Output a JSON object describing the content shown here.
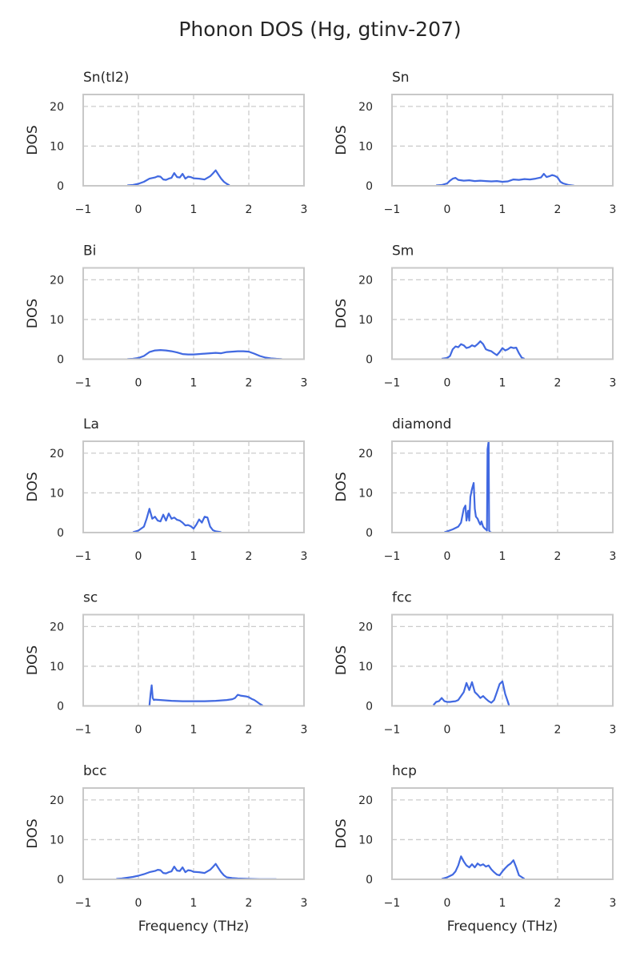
{
  "figure": {
    "title": "Phonon DOS (Hg, gtinv-207)"
  },
  "chart_data": [
    {
      "type": "line",
      "title": "Sn(tI2)",
      "xlabel": "",
      "ylabel": "DOS",
      "xlim": [
        -1,
        3
      ],
      "ylim": [
        0,
        23
      ],
      "x_ticks": [
        "−1",
        "0",
        "1",
        "2",
        "3"
      ],
      "y_ticks": [
        "0",
        "10",
        "20"
      ],
      "grid": true,
      "series": [
        {
          "x": [
            -0.2,
            -0.1,
            0,
            0.1,
            0.2,
            0.3,
            0.35,
            0.4,
            0.45,
            0.5,
            0.55,
            0.6,
            0.65,
            0.7,
            0.75,
            0.8,
            0.85,
            0.9,
            0.95,
            1.0,
            1.1,
            1.2,
            1.3,
            1.35,
            1.4,
            1.45,
            1.5,
            1.55,
            1.6,
            1.65
          ],
          "y": [
            0.1,
            0.2,
            0.5,
            1.0,
            1.8,
            2.1,
            2.4,
            2.3,
            1.6,
            1.5,
            1.8,
            2.0,
            3.2,
            2.2,
            2.1,
            3.0,
            1.8,
            2.3,
            2.2,
            1.9,
            1.8,
            1.6,
            2.4,
            3.1,
            3.9,
            2.8,
            1.8,
            1.0,
            0.5,
            0.1
          ]
        }
      ]
    },
    {
      "type": "line",
      "title": "Sn",
      "xlabel": "",
      "ylabel": "DOS",
      "xlim": [
        -1,
        3
      ],
      "ylim": [
        0,
        23
      ],
      "x_ticks": [
        "−1",
        "0",
        "1",
        "2",
        "3"
      ],
      "y_ticks": [
        "0",
        "10",
        "20"
      ],
      "grid": true,
      "series": [
        {
          "x": [
            -0.2,
            -0.1,
            0,
            0.05,
            0.1,
            0.15,
            0.2,
            0.3,
            0.4,
            0.5,
            0.6,
            0.7,
            0.8,
            0.9,
            1.0,
            1.1,
            1.2,
            1.3,
            1.4,
            1.5,
            1.6,
            1.7,
            1.75,
            1.8,
            1.85,
            1.9,
            1.95,
            2.0,
            2.05,
            2.1,
            2.2,
            2.3
          ],
          "y": [
            0.1,
            0.2,
            0.6,
            1.3,
            1.8,
            2.0,
            1.5,
            1.3,
            1.4,
            1.2,
            1.3,
            1.2,
            1.1,
            1.2,
            1.0,
            1.1,
            1.6,
            1.5,
            1.7,
            1.6,
            1.8,
            2.1,
            3.0,
            2.2,
            2.4,
            2.7,
            2.5,
            2.1,
            1.0,
            0.6,
            0.2,
            0.05
          ]
        }
      ]
    },
    {
      "type": "line",
      "title": "Bi",
      "xlabel": "",
      "ylabel": "DOS",
      "xlim": [
        -1,
        3
      ],
      "ylim": [
        0,
        23
      ],
      "x_ticks": [
        "−1",
        "0",
        "1",
        "2",
        "3"
      ],
      "y_ticks": [
        "0",
        "10",
        "20"
      ],
      "grid": true,
      "series": [
        {
          "x": [
            -0.2,
            -0.1,
            0,
            0.1,
            0.2,
            0.3,
            0.4,
            0.5,
            0.6,
            0.7,
            0.8,
            0.9,
            1.0,
            1.1,
            1.2,
            1.3,
            1.4,
            1.5,
            1.6,
            1.7,
            1.8,
            1.9,
            2.0,
            2.1,
            2.2,
            2.3,
            2.4,
            2.5,
            2.6
          ],
          "y": [
            0.05,
            0.1,
            0.3,
            0.8,
            1.8,
            2.2,
            2.3,
            2.2,
            2.0,
            1.7,
            1.3,
            1.2,
            1.2,
            1.3,
            1.4,
            1.5,
            1.6,
            1.5,
            1.8,
            1.9,
            2.0,
            2.0,
            1.9,
            1.4,
            0.8,
            0.4,
            0.2,
            0.1,
            0.05
          ]
        }
      ]
    },
    {
      "type": "line",
      "title": "Sm",
      "xlabel": "",
      "ylabel": "DOS",
      "xlim": [
        -1,
        3
      ],
      "ylim": [
        0,
        23
      ],
      "x_ticks": [
        "−1",
        "0",
        "1",
        "2",
        "3"
      ],
      "y_ticks": [
        "0",
        "10",
        "20"
      ],
      "grid": true,
      "series": [
        {
          "x": [
            -0.1,
            0,
            0.05,
            0.1,
            0.15,
            0.2,
            0.25,
            0.3,
            0.35,
            0.4,
            0.45,
            0.5,
            0.55,
            0.6,
            0.65,
            0.7,
            0.75,
            0.8,
            0.85,
            0.9,
            0.95,
            1.0,
            1.05,
            1.1,
            1.15,
            1.2,
            1.25,
            1.3,
            1.35,
            1.4
          ],
          "y": [
            0.1,
            0.3,
            0.8,
            2.5,
            3.2,
            3.0,
            3.8,
            3.5,
            2.8,
            3.0,
            3.5,
            3.2,
            3.8,
            4.5,
            3.8,
            2.5,
            2.2,
            2.0,
            1.5,
            1.0,
            1.8,
            2.8,
            2.2,
            2.5,
            3.0,
            2.8,
            2.9,
            1.5,
            0.4,
            0.1
          ]
        }
      ]
    },
    {
      "type": "line",
      "title": "La",
      "xlabel": "",
      "ylabel": "DOS",
      "xlim": [
        -1,
        3
      ],
      "ylim": [
        0,
        23
      ],
      "x_ticks": [
        "−1",
        "0",
        "1",
        "2",
        "3"
      ],
      "y_ticks": [
        "0",
        "10",
        "20"
      ],
      "grid": true,
      "series": [
        {
          "x": [
            -0.1,
            0,
            0.1,
            0.15,
            0.2,
            0.25,
            0.3,
            0.35,
            0.4,
            0.45,
            0.5,
            0.55,
            0.6,
            0.65,
            0.7,
            0.75,
            0.8,
            0.85,
            0.9,
            0.95,
            1.0,
            1.05,
            1.1,
            1.15,
            1.2,
            1.25,
            1.3,
            1.35,
            1.4,
            1.5
          ],
          "y": [
            0.1,
            0.5,
            1.5,
            3.5,
            6.0,
            3.5,
            4.0,
            3.0,
            2.8,
            4.5,
            3.0,
            4.8,
            3.5,
            3.8,
            3.2,
            3.0,
            2.5,
            1.8,
            1.9,
            1.6,
            1.0,
            2.0,
            3.3,
            2.5,
            4.0,
            3.8,
            1.5,
            0.6,
            0.3,
            0.1
          ]
        }
      ]
    },
    {
      "type": "line",
      "title": "diamond",
      "xlabel": "",
      "ylabel": "DOS",
      "xlim": [
        -1,
        3
      ],
      "ylim": [
        0,
        23
      ],
      "x_ticks": [
        "−1",
        "0",
        "1",
        "2",
        "3"
      ],
      "y_ticks": [
        "0",
        "10",
        "20"
      ],
      "grid": true,
      "series": [
        {
          "x": [
            -0.05,
            0,
            0.1,
            0.2,
            0.25,
            0.3,
            0.33,
            0.35,
            0.38,
            0.4,
            0.42,
            0.45,
            0.48,
            0.5,
            0.52,
            0.55,
            0.58,
            0.6,
            0.62,
            0.65,
            0.68,
            0.7,
            0.72,
            0.73,
            0.75,
            0.76,
            0.78,
            0.8
          ],
          "y": [
            0.1,
            0.3,
            0.8,
            1.5,
            2.5,
            6.0,
            6.8,
            3.0,
            5.5,
            3.0,
            9.0,
            11.0,
            12.5,
            6.0,
            4.0,
            3.5,
            2.5,
            2.0,
            2.8,
            1.5,
            1.0,
            0.8,
            0.5,
            21.0,
            23.0,
            0.5,
            0.1,
            0.05
          ]
        }
      ]
    },
    {
      "type": "line",
      "title": "sc",
      "xlabel": "",
      "ylabel": "DOS",
      "xlim": [
        -1,
        3
      ],
      "ylim": [
        0,
        23
      ],
      "x_ticks": [
        "−1",
        "0",
        "1",
        "2",
        "3"
      ],
      "y_ticks": [
        "0",
        "10",
        "20"
      ],
      "grid": true,
      "series": [
        {
          "x": [
            0.2,
            0.22,
            0.24,
            0.26,
            0.28,
            0.3,
            0.4,
            0.5,
            0.6,
            0.8,
            1.0,
            1.2,
            1.4,
            1.5,
            1.6,
            1.7,
            1.75,
            1.8,
            1.85,
            1.9,
            1.95,
            2.0,
            2.05,
            2.1,
            2.15,
            2.2,
            2.25
          ],
          "y": [
            0.1,
            3.0,
            5.2,
            2.0,
            1.5,
            1.6,
            1.5,
            1.4,
            1.3,
            1.2,
            1.2,
            1.2,
            1.3,
            1.4,
            1.5,
            1.7,
            2.0,
            2.8,
            2.6,
            2.5,
            2.4,
            2.2,
            1.8,
            1.5,
            1.0,
            0.5,
            0.1
          ]
        }
      ]
    },
    {
      "type": "line",
      "title": "fcc",
      "xlabel": "",
      "ylabel": "DOS",
      "xlim": [
        -1,
        3
      ],
      "ylim": [
        0,
        23
      ],
      "x_ticks": [
        "−1",
        "0",
        "1",
        "2",
        "3"
      ],
      "y_ticks": [
        "0",
        "10",
        "20"
      ],
      "grid": true,
      "series": [
        {
          "x": [
            -0.25,
            -0.2,
            -0.15,
            -0.1,
            -0.05,
            0,
            0.05,
            0.1,
            0.15,
            0.2,
            0.25,
            0.3,
            0.35,
            0.4,
            0.45,
            0.5,
            0.55,
            0.6,
            0.65,
            0.7,
            0.75,
            0.8,
            0.85,
            0.9,
            0.95,
            1.0,
            1.05,
            1.1,
            1.12
          ],
          "y": [
            0.2,
            1.0,
            1.2,
            2.0,
            1.2,
            1.0,
            1.0,
            1.1,
            1.2,
            1.5,
            2.5,
            3.5,
            5.8,
            4.0,
            6.0,
            3.5,
            2.8,
            2.0,
            2.5,
            1.8,
            1.2,
            0.8,
            1.5,
            3.5,
            5.5,
            6.2,
            3.0,
            1.0,
            0.1
          ]
        }
      ]
    },
    {
      "type": "line",
      "title": "bcc",
      "xlabel": "Frequency (THz)",
      "ylabel": "DOS",
      "xlim": [
        -1,
        3
      ],
      "ylim": [
        0,
        23
      ],
      "x_ticks": [
        "−1",
        "0",
        "1",
        "2",
        "3"
      ],
      "y_ticks": [
        "0",
        "10",
        "20"
      ],
      "grid": true,
      "series": [
        {
          "x": [
            -0.4,
            -0.3,
            -0.2,
            -0.1,
            0,
            0.1,
            0.2,
            0.3,
            0.35,
            0.4,
            0.45,
            0.5,
            0.55,
            0.6,
            0.65,
            0.7,
            0.75,
            0.8,
            0.85,
            0.9,
            0.95,
            1.0,
            1.1,
            1.2,
            1.3,
            1.35,
            1.4,
            1.45,
            1.5,
            1.55,
            1.6,
            1.7,
            1.8,
            2.0,
            2.2,
            2.5
          ],
          "y": [
            0.1,
            0.2,
            0.4,
            0.6,
            0.9,
            1.3,
            1.8,
            2.1,
            2.4,
            2.3,
            1.6,
            1.5,
            1.8,
            2.0,
            3.2,
            2.2,
            2.1,
            3.0,
            1.8,
            2.3,
            2.2,
            1.9,
            1.8,
            1.6,
            2.4,
            3.1,
            3.9,
            2.8,
            1.8,
            1.0,
            0.5,
            0.3,
            0.2,
            0.1,
            0.05,
            0.02
          ]
        }
      ]
    },
    {
      "type": "line",
      "title": "hcp",
      "xlabel": "Frequency (THz)",
      "ylabel": "DOS",
      "xlim": [
        -1,
        3
      ],
      "ylim": [
        0,
        23
      ],
      "x_ticks": [
        "−1",
        "0",
        "1",
        "2",
        "3"
      ],
      "y_ticks": [
        "0",
        "10",
        "20"
      ],
      "grid": true,
      "series": [
        {
          "x": [
            -0.1,
            0,
            0.1,
            0.15,
            0.2,
            0.25,
            0.3,
            0.35,
            0.4,
            0.45,
            0.5,
            0.55,
            0.6,
            0.65,
            0.7,
            0.75,
            0.8,
            0.85,
            0.9,
            0.95,
            1.0,
            1.05,
            1.1,
            1.15,
            1.2,
            1.25,
            1.3,
            1.4
          ],
          "y": [
            0.1,
            0.5,
            1.2,
            2.0,
            3.5,
            5.8,
            4.5,
            3.5,
            3.0,
            3.8,
            3.0,
            4.0,
            3.5,
            3.8,
            3.2,
            3.5,
            2.5,
            1.8,
            1.2,
            1.0,
            2.0,
            2.8,
            3.5,
            4.0,
            4.8,
            3.0,
            1.0,
            0.1
          ]
        }
      ]
    }
  ]
}
